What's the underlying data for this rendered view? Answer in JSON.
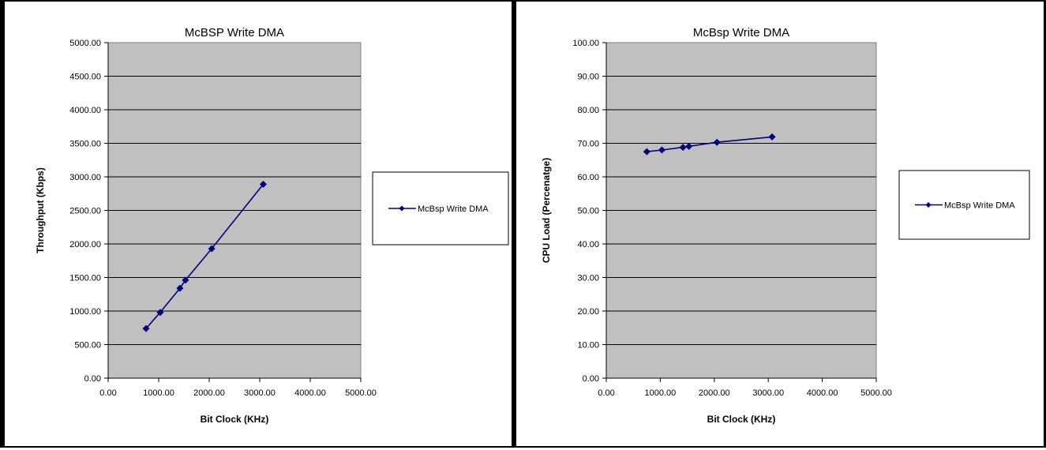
{
  "chart_data": [
    {
      "type": "line",
      "title": "McBSP Write DMA",
      "xlabel": "Bit Clock (KHz)",
      "ylabel": "Throughput (Kbps)",
      "xlim": [
        0,
        5000
      ],
      "ylim": [
        0,
        5000
      ],
      "xticks": [
        "0.00",
        "1000.00",
        "2000.00",
        "3000.00",
        "4000.00",
        "5000.00"
      ],
      "yticks": [
        "0.00",
        "500.00",
        "1000.00",
        "1500.00",
        "2000.00",
        "2500.00",
        "3000.00",
        "3500.00",
        "4000.00",
        "4500.00",
        "5000.00"
      ],
      "grid": true,
      "legend_position": "right",
      "background_color": "#c0c0c0",
      "series": [
        {
          "name": "McBsp Write DMA",
          "color": "#000080",
          "marker": "diamond",
          "x": [
            750,
            1030,
            1420,
            1530,
            2050,
            3070
          ],
          "y": [
            740,
            980,
            1340,
            1460,
            1930,
            2890
          ]
        }
      ]
    },
    {
      "type": "line",
      "title": "McBsp Write DMA",
      "xlabel": "Bit Clock (KHz)",
      "ylabel": "CPU Load (Percenatge)",
      "xlim": [
        0,
        5000
      ],
      "ylim": [
        0,
        100
      ],
      "xticks": [
        "0.00",
        "1000.00",
        "2000.00",
        "3000.00",
        "4000.00",
        "5000.00"
      ],
      "yticks": [
        "0.00",
        "10.00",
        "20.00",
        "30.00",
        "40.00",
        "50.00",
        "60.00",
        "70.00",
        "80.00",
        "90.00",
        "100.00"
      ],
      "grid": true,
      "legend_position": "right",
      "background_color": "#c0c0c0",
      "series": [
        {
          "name": "McBsp Write DMA",
          "color": "#000080",
          "marker": "diamond",
          "x": [
            750,
            1030,
            1420,
            1530,
            2050,
            3070
          ],
          "y": [
            67.5,
            68.0,
            68.8,
            69.1,
            70.3,
            71.9
          ]
        }
      ]
    }
  ]
}
